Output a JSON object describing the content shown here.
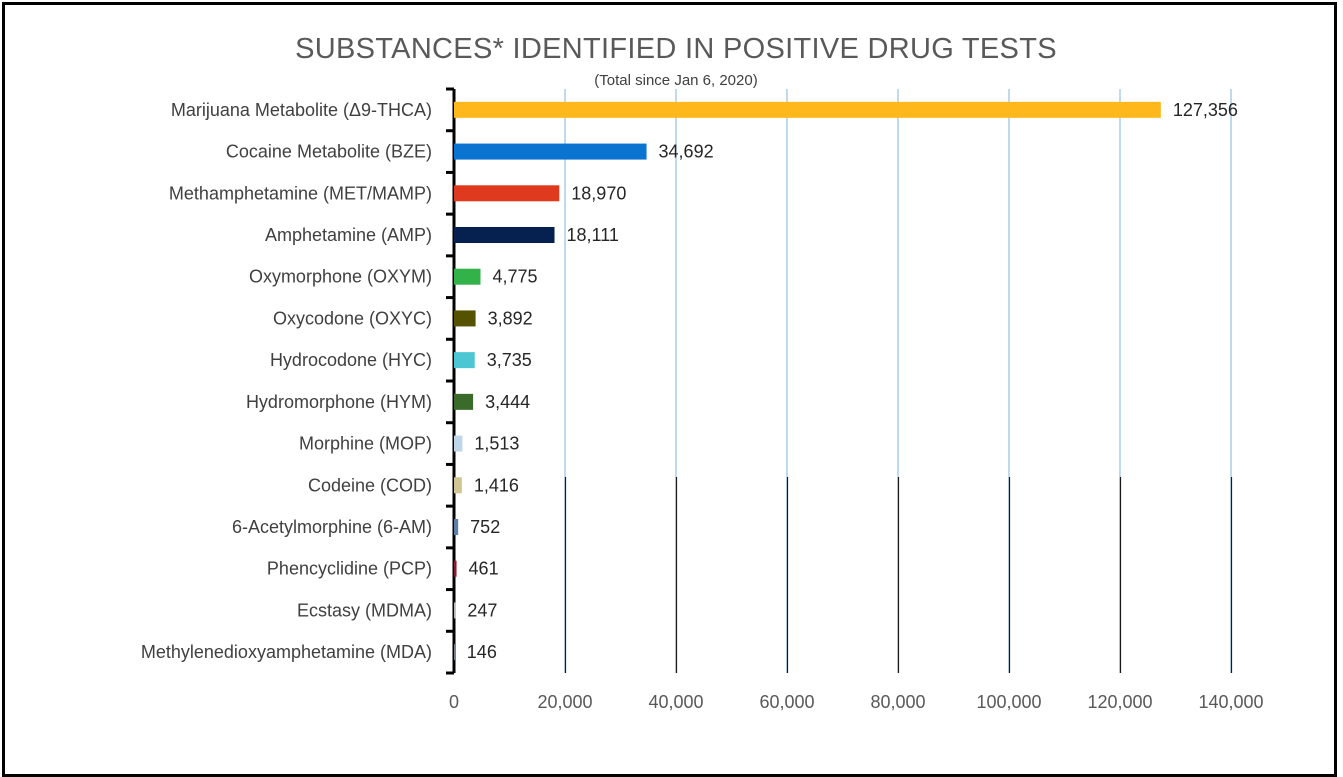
{
  "chart_data": {
    "type": "bar",
    "orientation": "horizontal",
    "title": "SUBSTANCES* IDENTIFIED IN POSITIVE DRUG TESTS",
    "subtitle": "(Total since Jan 6, 2020)",
    "xlabel": "",
    "ylabel": "",
    "xlim": [
      0,
      140000
    ],
    "x_ticks": [
      "0",
      "20,000",
      "40,000",
      "60,000",
      "80,000",
      "100,000",
      "120,000",
      "140,000"
    ],
    "grid": true,
    "legend": "none",
    "categories": [
      "Marijuana Metabolite (Δ9-THCA)",
      "Cocaine Metabolite (BZE)",
      "Methamphetamine (MET/MAMP)",
      "Amphetamine (AMP)",
      "Oxymorphone (OXYM)",
      "Oxycodone (OXYC)",
      "Hydrocodone (HYC)",
      "Hydromorphone (HYM)",
      "Morphine (MOP)",
      "Codeine (COD)",
      "6-Acetylmorphine (6-AM)",
      "Phencyclidine (PCP)",
      "Ecstasy (MDMA)",
      "Methylenedioxyamphetamine (MDA)"
    ],
    "values": [
      127356,
      34692,
      18970,
      18111,
      4775,
      3892,
      3735,
      3444,
      1513,
      1416,
      752,
      461,
      247,
      146
    ],
    "value_labels": [
      "127,356",
      "34,692",
      "18,970",
      "18,111",
      "4,775",
      "3,892",
      "3,735",
      "3,444",
      "1,513",
      "1,416",
      "752",
      "461",
      "247",
      "146"
    ],
    "colors": [
      "#FFB81C",
      "#0A74D0",
      "#E03A1E",
      "#06204F",
      "#33B24A",
      "#565300",
      "#4BC6D2",
      "#3B6B2B",
      "#BFD5EA",
      "#CFC694",
      "#5B7FA8",
      "#8A1B2C",
      "#B8B8B8",
      "#8FA0B0"
    ],
    "gridline_color": "#BFD9EE"
  }
}
